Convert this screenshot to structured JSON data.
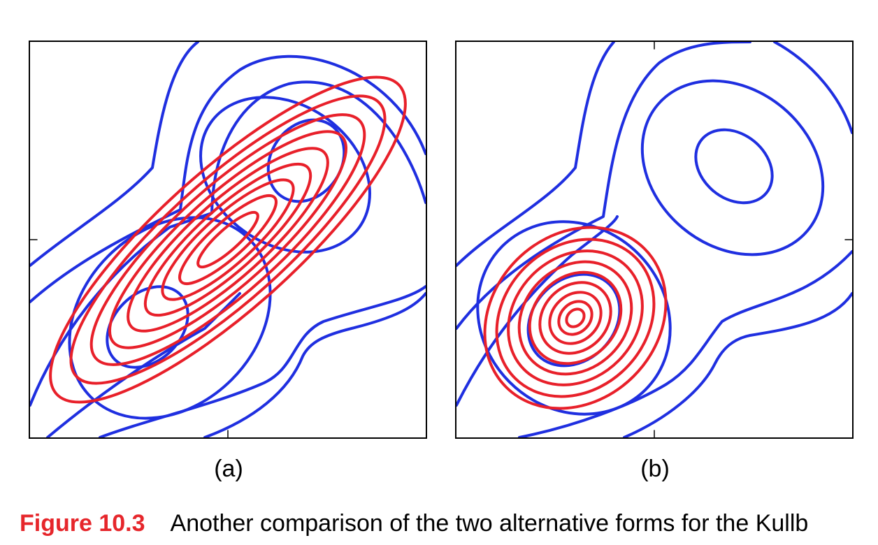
{
  "panels": [
    {
      "label": "(a)"
    },
    {
      "label": "(b)"
    }
  ],
  "caption": {
    "figure_number": "Figure 10.3",
    "text": "Another comparison of the two alternative forms for the Kullb"
  },
  "colors": {
    "blue": "#1f2fe0",
    "red": "#e8202a"
  }
}
